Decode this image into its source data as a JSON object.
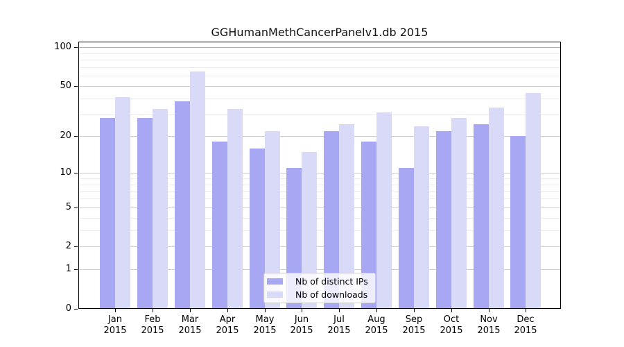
{
  "chart_data": {
    "type": "bar",
    "title": "GGHumanMethCancerPanelv1.db 2015",
    "categories": [
      "Jan",
      "Feb",
      "Mar",
      "Apr",
      "May",
      "Jun",
      "Jul",
      "Aug",
      "Sep",
      "Oct",
      "Nov",
      "Dec"
    ],
    "year_label": "2015",
    "series": [
      {
        "name": "Nb of distinct IPs",
        "color": "#a7a7f3",
        "values": [
          28,
          28,
          38,
          18,
          16,
          11,
          22,
          18,
          11,
          22,
          25,
          20
        ]
      },
      {
        "name": "Nb of downloads",
        "color": "#d9d9f8",
        "values": [
          41,
          33,
          65,
          33,
          22,
          15,
          25,
          31,
          24,
          28,
          34,
          44
        ]
      }
    ],
    "xlabel": "",
    "ylabel": "",
    "yscale": "log1p",
    "ylim": [
      0,
      100
    ],
    "y_major_ticks": [
      0,
      1,
      2,
      5,
      10,
      20,
      50,
      100
    ],
    "y_minor_gridlines": [
      3,
      4,
      6,
      7,
      8,
      9,
      30,
      40,
      60,
      70,
      80,
      90
    ],
    "grid": "horizontal",
    "legend_position": "bottom-center"
  },
  "colors": {
    "bar_distinct_ips": "#a7a7f3",
    "bar_downloads": "#d9d9f8",
    "gridline_major": "#cdcdcd",
    "gridline_top": "#b3b3b3",
    "gridline_minor": "#ececec",
    "axis_frame": "#000000",
    "legend_border": "#cccccc"
  }
}
